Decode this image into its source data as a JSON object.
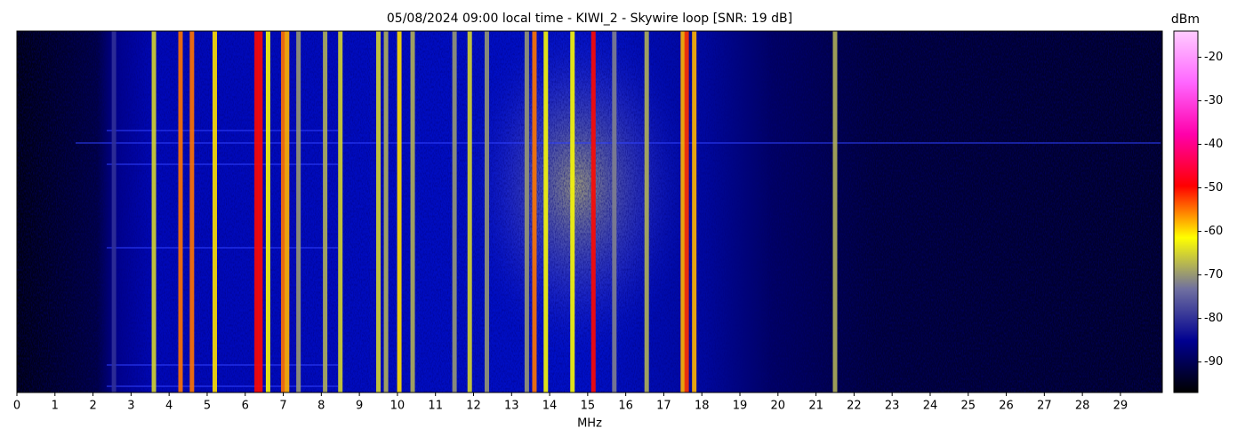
{
  "chart_data": {
    "type": "waterfall",
    "title": "05/08/2024 09:00 local time - KIWI_2 - Skywire loop [SNR: 19 dB]",
    "x_label": "MHz",
    "colorbar_label": "dBm",
    "xlim": [
      0,
      30.1
    ],
    "xticks": [
      0,
      1,
      2,
      3,
      4,
      5,
      6,
      7,
      8,
      9,
      10,
      11,
      12,
      13,
      14,
      15,
      16,
      17,
      18,
      19,
      20,
      21,
      22,
      23,
      24,
      25,
      26,
      27,
      28,
      29
    ],
    "clim": [
      -97,
      -14
    ],
    "cticks": [
      -90,
      -80,
      -70,
      -60,
      -50,
      -40,
      -30,
      -20
    ],
    "colormap": [
      "#000000",
      "#000090",
      "#6f6fa0",
      "#ffff00",
      "#ff0000",
      "#ff00aa",
      "#ff66ff",
      "#ffccff"
    ],
    "signals": {
      "frequency": [
        2.55,
        3.6,
        4.3,
        4.6,
        5.2,
        6.3,
        6.4,
        6.6,
        7.0,
        7.1,
        7.4,
        8.1,
        8.5,
        9.5,
        9.7,
        10.05,
        10.4,
        11.5,
        11.9,
        12.35,
        13.4,
        13.6,
        13.9,
        14.6,
        15.15,
        15.7,
        16.55,
        17.5,
        17.6,
        17.8,
        21.5
      ],
      "level": [
        -80,
        -65,
        -55,
        -55,
        -60,
        -50,
        -50,
        -62,
        -55,
        -58,
        -70,
        -68,
        -65,
        -65,
        -68,
        -60,
        -68,
        -70,
        -65,
        -70,
        -70,
        -55,
        -62,
        -62,
        -50,
        -72,
        -68,
        -58,
        -52,
        -58,
        -68
      ]
    }
  }
}
